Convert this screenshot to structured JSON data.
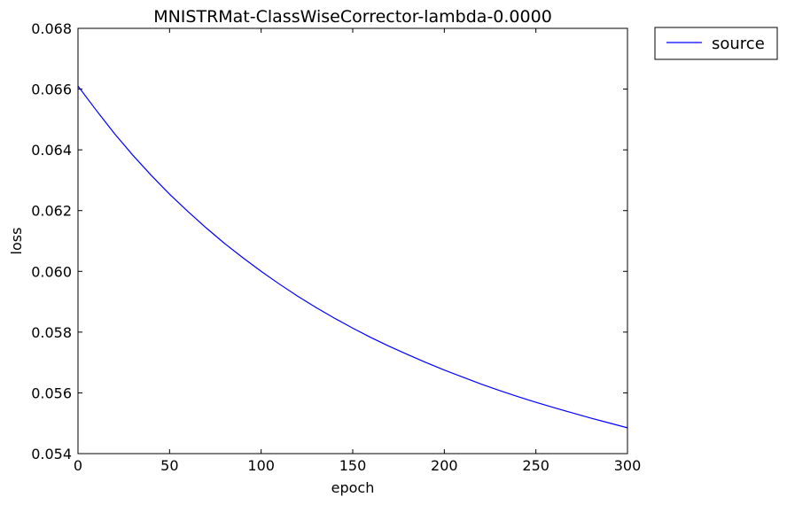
{
  "chart_data": {
    "type": "line",
    "title": "MNISTRMat-ClassWiseCorrector-lambda-0.0000",
    "xlabel": "epoch",
    "ylabel": "loss",
    "xlim": [
      0,
      300
    ],
    "ylim": [
      0.054,
      0.068
    ],
    "xticks": [
      0,
      50,
      100,
      150,
      200,
      250,
      300
    ],
    "xtick_labels": [
      "0",
      "50",
      "100",
      "150",
      "200",
      "250",
      "300"
    ],
    "yticks": [
      0.054,
      0.056,
      0.058,
      0.06,
      0.062,
      0.064,
      0.066,
      0.068
    ],
    "ytick_labels": [
      "0.054",
      "0.056",
      "0.058",
      "0.060",
      "0.062",
      "0.064",
      "0.066",
      "0.068"
    ],
    "grid": false,
    "legend_position": "outside-top-right",
    "series": [
      {
        "name": "source",
        "color": "#0000ff",
        "x": [
          0,
          10,
          20,
          30,
          40,
          50,
          60,
          70,
          80,
          90,
          100,
          110,
          120,
          130,
          140,
          150,
          160,
          170,
          180,
          190,
          200,
          210,
          220,
          230,
          240,
          250,
          260,
          270,
          280,
          290,
          300
        ],
        "y": [
          0.0661,
          0.0653,
          0.06453,
          0.06382,
          0.06316,
          0.06254,
          0.06197,
          0.06143,
          0.06092,
          0.06045,
          0.06,
          0.05958,
          0.05918,
          0.05881,
          0.05846,
          0.05813,
          0.05782,
          0.05753,
          0.05726,
          0.057,
          0.05675,
          0.05652,
          0.05629,
          0.05608,
          0.05588,
          0.05569,
          0.05551,
          0.05534,
          0.05517,
          0.05501,
          0.05485
        ]
      }
    ]
  }
}
